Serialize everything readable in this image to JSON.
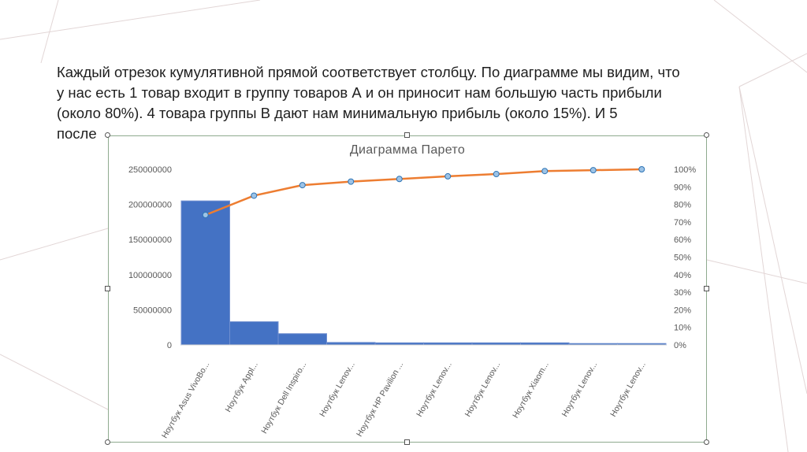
{
  "paragraph": {
    "lines": [
      "Каждый отрезок кумулятивной прямой соответствует столбцу. По диаграмме мы видим, что",
      "у нас есть 1 товар входит в группу товаров А  и он приносит нам большую часть прибыли",
      "(около 80%). 4 товара группы В дают нам минимальную прибыль (около 15%).  И 5",
      "после"
    ]
  },
  "chart_data": {
    "type": "bar",
    "title": "Диаграмма Парето",
    "categories": [
      "Ноутбук Asus VivoBo...",
      "Ноутбук Appl...",
      "Ноутбук Dell Inspiro...",
      "Ноутбук Lenov...",
      "Ноутбук HP Pavilion ...",
      "Ноутбук Lenov...",
      "Ноутбук Lenov...",
      "Ноутбук Xiaom...",
      "Ноутбук Lenov...",
      "Ноутбук Lenov..."
    ],
    "series": [
      {
        "type": "bar",
        "values": [
          205000000,
          33000000,
          16000000,
          3500000,
          3000000,
          3000000,
          3000000,
          3000000,
          2000000,
          2000000
        ]
      },
      {
        "type": "line",
        "axis": "secondary",
        "values": [
          74,
          85,
          91,
          93,
          94.5,
          96,
          97.3,
          99,
          99.5,
          100
        ]
      }
    ],
    "y_ticks": [
      "250000000",
      "200000000",
      "150000000",
      "100000000",
      "50000000",
      "0"
    ],
    "ylim": [
      0,
      250000000
    ],
    "y2_ticks": [
      "100%",
      "90%",
      "80%",
      "70%",
      "60%",
      "50%",
      "40%",
      "30%",
      "20%",
      "10%",
      "0%"
    ],
    "y2lim": [
      0,
      100
    ],
    "grid": false,
    "legend": "none",
    "colors": {
      "bar": "#4472c4",
      "bar_border": "#6f8fd0",
      "line": "#ed7d31",
      "marker_fill": "#9dc3e6",
      "marker_stroke": "#2e75b6",
      "axis_text": "#595959"
    }
  }
}
